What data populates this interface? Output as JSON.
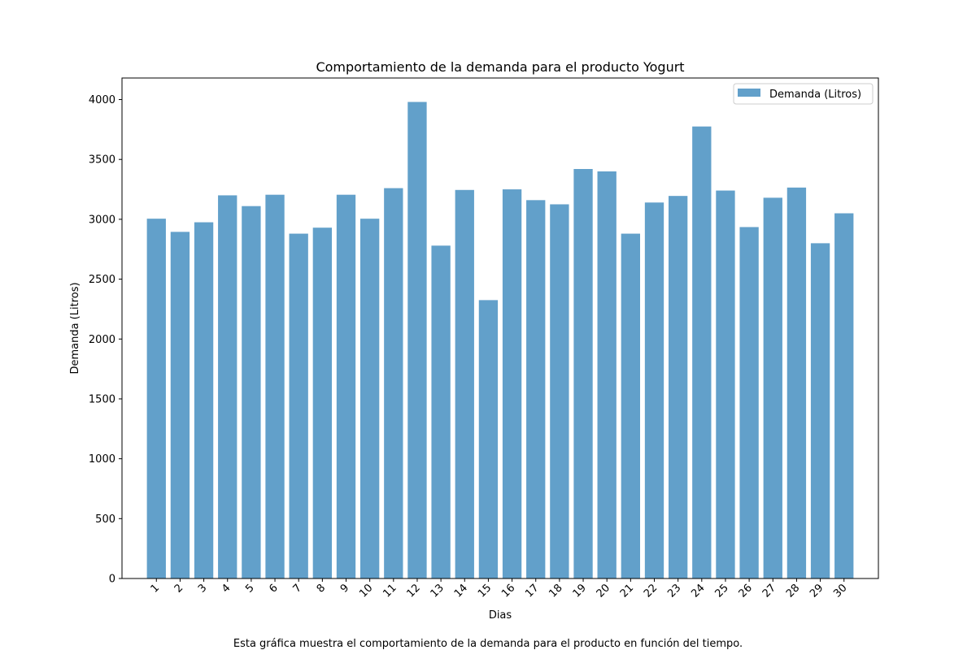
{
  "chart_data": {
    "type": "bar",
    "title": "Comportamiento de la demanda para el producto Yogurt",
    "xlabel": "Dias",
    "ylabel": "Demanda (Litros)",
    "caption": "Esta gráfica muestra el comportamiento de la demanda para el producto en función del tiempo.",
    "categories": [
      "1",
      "2",
      "3",
      "4",
      "5",
      "6",
      "7",
      "8",
      "9",
      "10",
      "11",
      "12",
      "13",
      "14",
      "15",
      "16",
      "17",
      "18",
      "19",
      "20",
      "21",
      "22",
      "23",
      "24",
      "25",
      "26",
      "27",
      "28",
      "29",
      "30"
    ],
    "series": [
      {
        "name": "Demanda (Litros)",
        "color": "#1f77b4",
        "opacity": 0.7,
        "values": [
          3005,
          2895,
          2975,
          3200,
          3110,
          3205,
          2880,
          2930,
          3205,
          3005,
          3260,
          3980,
          2780,
          3245,
          2325,
          3250,
          3160,
          3125,
          3420,
          3400,
          2880,
          3140,
          3195,
          3775,
          3240,
          2935,
          3180,
          3265,
          2800,
          3050
        ]
      }
    ],
    "ylim": [
      0,
      4180
    ],
    "yticks": [
      0,
      500,
      1000,
      1500,
      2000,
      2500,
      3000,
      3500,
      4000
    ],
    "xtick_rotation": 45,
    "grid": false,
    "legend": "top-right"
  }
}
